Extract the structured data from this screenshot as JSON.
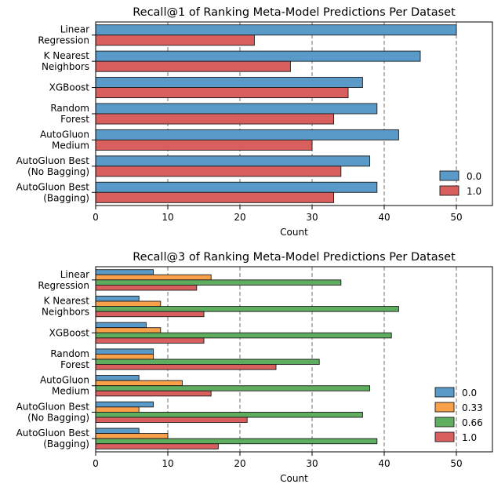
{
  "chart_data": [
    {
      "type": "bar",
      "orientation": "horizontal",
      "title": "Recall@1 of Ranking Meta-Model Predictions Per Dataset",
      "xlabel": "Count",
      "ylabel": "",
      "xlim": [
        0,
        55
      ],
      "xticks": [
        0,
        10,
        20,
        30,
        40,
        50
      ],
      "grid": "x-dashed",
      "legend_position": "lower-right",
      "categories": [
        [
          "Linear",
          "Regression"
        ],
        [
          "K Nearest",
          "Neighbors"
        ],
        [
          "XGBoost"
        ],
        [
          "Random",
          "Forest"
        ],
        [
          "AutoGluon",
          "Medium"
        ],
        [
          "AutoGluon Best",
          "(No Bagging)"
        ],
        [
          "AutoGluon Best",
          "(Bagging)"
        ]
      ],
      "series": [
        {
          "name": "0.0",
          "color": "#5a9ac8",
          "values": [
            50,
            45,
            37,
            39,
            42,
            38,
            39
          ]
        },
        {
          "name": "1.0",
          "color": "#d95f5f",
          "values": [
            22,
            27,
            35,
            33,
            30,
            34,
            33
          ]
        }
      ]
    },
    {
      "type": "bar",
      "orientation": "horizontal",
      "title": "Recall@3 of Ranking Meta-Model Predictions Per Dataset",
      "xlabel": "Count",
      "ylabel": "",
      "xlim": [
        0,
        55
      ],
      "xticks": [
        0,
        10,
        20,
        30,
        40,
        50
      ],
      "grid": "x-dashed",
      "legend_position": "lower-right",
      "categories": [
        [
          "Linear",
          "Regression"
        ],
        [
          "K Nearest",
          "Neighbors"
        ],
        [
          "XGBoost"
        ],
        [
          "Random",
          "Forest"
        ],
        [
          "AutoGluon",
          "Medium"
        ],
        [
          "AutoGluon Best",
          "(No Bagging)"
        ],
        [
          "AutoGluon Best",
          "(Bagging)"
        ]
      ],
      "series": [
        {
          "name": "0.0",
          "color": "#5a9ac8",
          "values": [
            8,
            6,
            7,
            8,
            6,
            8,
            6
          ]
        },
        {
          "name": "0.33",
          "color": "#f9a04a",
          "values": [
            16,
            9,
            9,
            8,
            12,
            6,
            10
          ]
        },
        {
          "name": "0.66",
          "color": "#5fad5f",
          "values": [
            34,
            42,
            41,
            31,
            38,
            37,
            39
          ]
        },
        {
          "name": "1.0",
          "color": "#d95f5f",
          "values": [
            14,
            15,
            15,
            25,
            16,
            21,
            17
          ]
        }
      ]
    }
  ]
}
